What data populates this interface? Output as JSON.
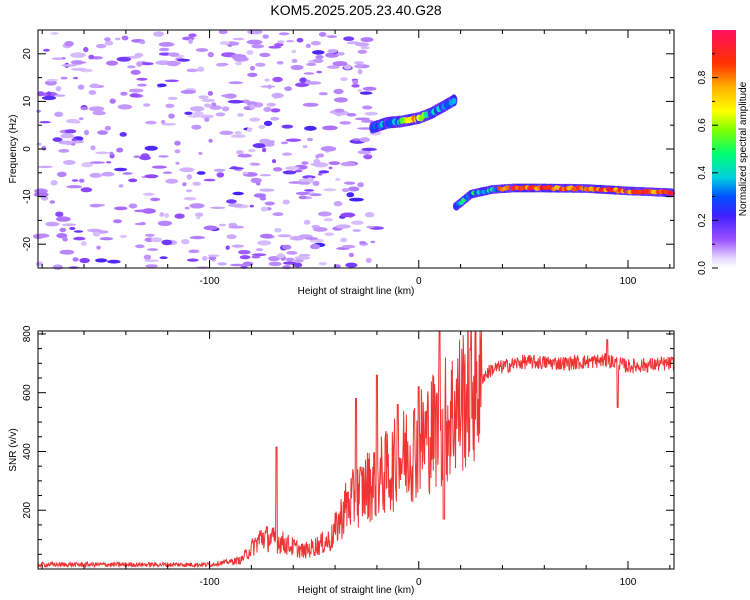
{
  "title": "KOM5.2025.205.23.40.G28",
  "chart_data": [
    {
      "type": "heatmap",
      "xlabel": "Height of straight line (km)",
      "ylabel": "Frequency (Hz)",
      "xlim": [
        -182,
        122
      ],
      "ylim": [
        -25,
        25
      ],
      "xticks": [
        -100,
        0,
        100
      ],
      "yticks": [
        -20,
        -10,
        0,
        10,
        20
      ],
      "colorbar": {
        "label": "Normalized spectral amplitude",
        "range": [
          0,
          1
        ],
        "ticks": [
          "0.0",
          "0.2",
          "0.4",
          "0.6",
          "0.8"
        ]
      },
      "ridges": [
        {
          "points": [
            [
              -22,
              4.5
            ],
            [
              -15,
              5.5
            ],
            [
              -8,
              5.8
            ],
            [
              0,
              6.5
            ],
            [
              6,
              7.5
            ],
            [
              12,
              9.0
            ],
            [
              18,
              10.5
            ]
          ]
        },
        {
          "points": [
            [
              18,
              -12.0
            ],
            [
              25,
              -9.5
            ],
            [
              35,
              -8.5
            ],
            [
              45,
              -8.2
            ],
            [
              60,
              -8.2
            ],
            [
              80,
              -8.3
            ],
            [
              100,
              -8.8
            ],
            [
              122,
              -9.2
            ]
          ]
        }
      ],
      "noise_region": {
        "x_range": [
          -182,
          -20
        ],
        "y_range": [
          -25,
          25
        ],
        "level": 0.1
      }
    },
    {
      "type": "line",
      "xlabel": "Height of straight line (km)",
      "ylabel": "SNR (v/v)",
      "xlim": [
        -182,
        122
      ],
      "ylim": [
        0,
        810
      ],
      "xticks": [
        -100,
        0,
        100
      ],
      "yticks": [
        200,
        400,
        600,
        800
      ],
      "series": [
        {
          "color": "#ee3333",
          "trend": [
            [
              -182,
              15
            ],
            [
              -100,
              15
            ],
            [
              -85,
              30
            ],
            [
              -75,
              110
            ],
            [
              -65,
              90
            ],
            [
              -55,
              60
            ],
            [
              -42,
              100
            ],
            [
              -35,
              210
            ],
            [
              -25,
              280
            ],
            [
              -15,
              330
            ],
            [
              -5,
              400
            ],
            [
              5,
              460
            ],
            [
              15,
              520
            ],
            [
              25,
              620
            ],
            [
              35,
              680
            ],
            [
              50,
              705
            ],
            [
              70,
              700
            ],
            [
              90,
              710
            ],
            [
              100,
              690
            ],
            [
              122,
              700
            ]
          ],
          "spikes": [
            [
              -68,
              415
            ],
            [
              -30,
              580
            ],
            [
              -20,
              660
            ],
            [
              -10,
              560
            ],
            [
              0,
              620
            ],
            [
              10,
              810
            ],
            [
              12,
              170
            ],
            [
              90,
              780
            ],
            [
              95,
              550
            ]
          ]
        }
      ]
    }
  ],
  "colors": {
    "line": "#ee3333",
    "axis": "#000000"
  }
}
